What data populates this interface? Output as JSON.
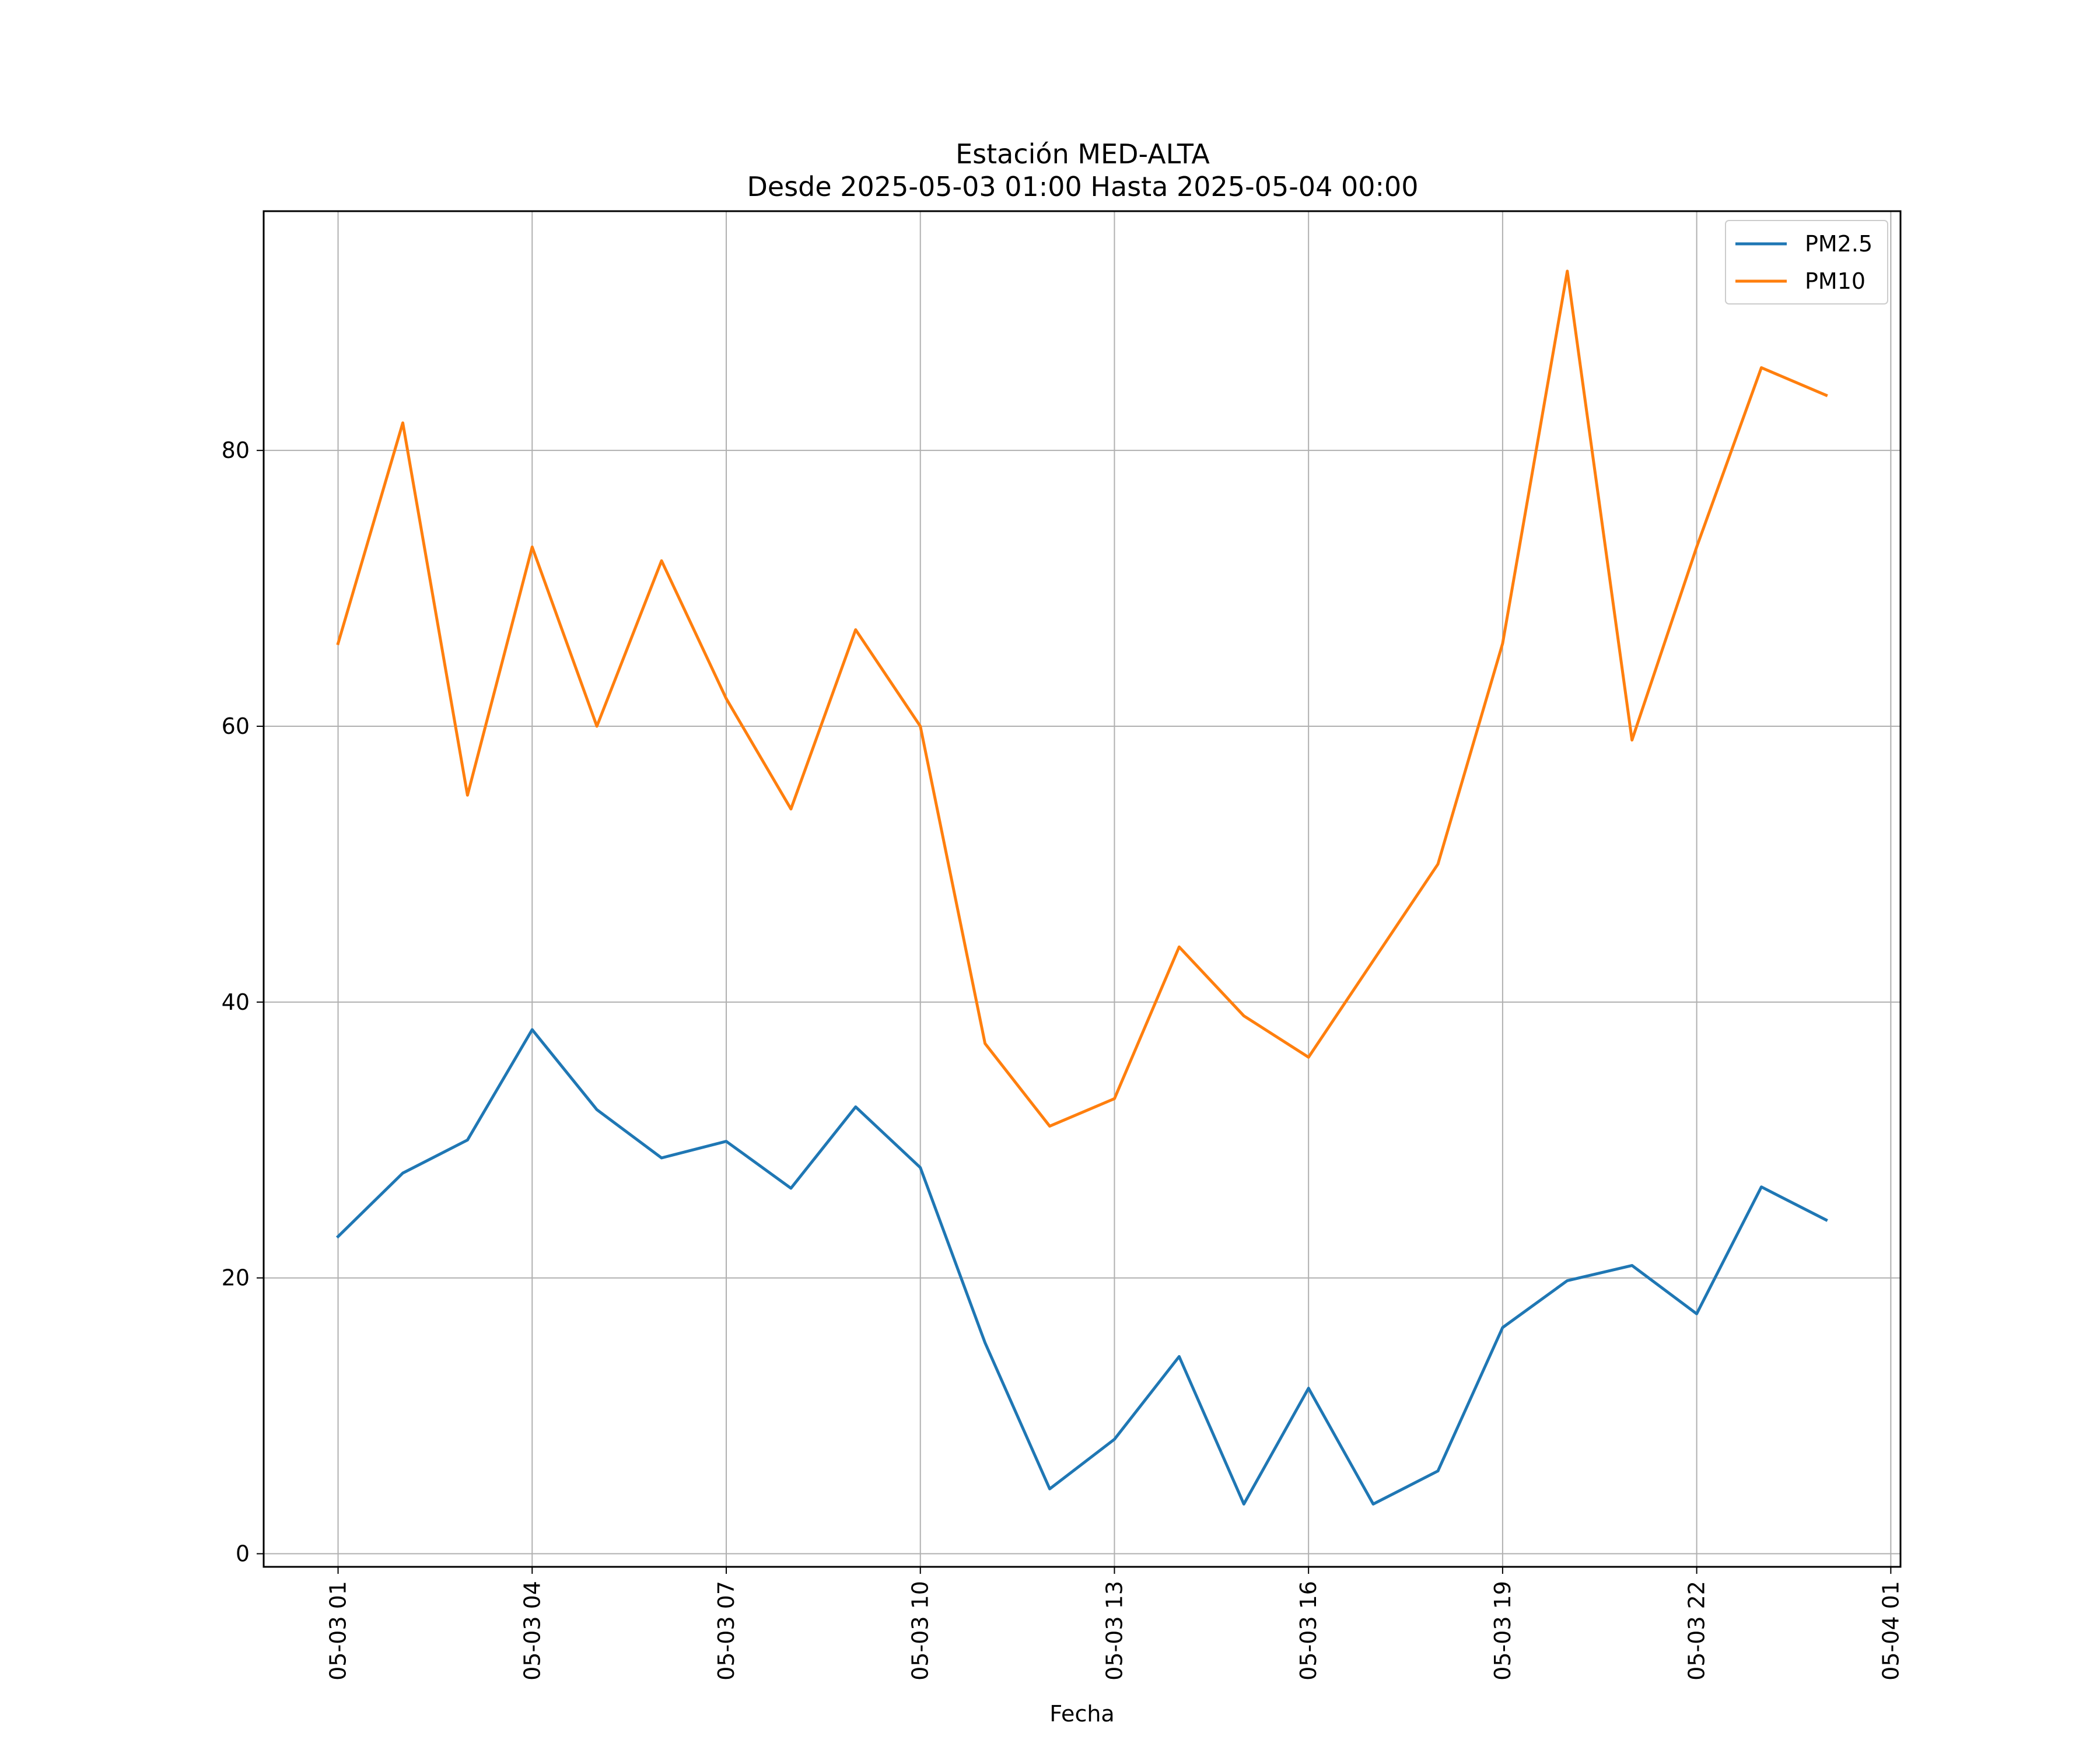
{
  "chart_data": {
    "type": "line",
    "title": "Estación MED-ALTA",
    "subtitle": "Desde 2025-05-03 01:00 Hasta 2025-05-04 00:00",
    "xlabel": "Fecha",
    "ylabel": "",
    "x": [
      "2025-05-03 01:00",
      "2025-05-03 02:00",
      "2025-05-03 03:00",
      "2025-05-03 04:00",
      "2025-05-03 05:00",
      "2025-05-03 06:00",
      "2025-05-03 07:00",
      "2025-05-03 08:00",
      "2025-05-03 09:00",
      "2025-05-03 10:00",
      "2025-05-03 11:00",
      "2025-05-03 12:00",
      "2025-05-03 13:00",
      "2025-05-03 14:00",
      "2025-05-03 15:00",
      "2025-05-03 16:00",
      "2025-05-03 17:00",
      "2025-05-03 18:00",
      "2025-05-03 19:00",
      "2025-05-03 20:00",
      "2025-05-03 21:00",
      "2025-05-03 22:00",
      "2025-05-03 23:00",
      "2025-05-04 00:00"
    ],
    "series": [
      {
        "name": "PM2.5",
        "color": "#1f77b4",
        "values": [
          23,
          27.6,
          30,
          38,
          32.2,
          28.7,
          29.9,
          26.5,
          32.4,
          28,
          15.3,
          4.7,
          8.3,
          14.3,
          3.6,
          12,
          3.6,
          6,
          16.4,
          19.8,
          20.9,
          17.4,
          26.6,
          24.2
        ]
      },
      {
        "name": "PM10",
        "color": "#ff7f0e",
        "values": [
          66,
          82,
          55,
          73,
          60,
          72,
          62,
          54,
          67,
          60,
          37,
          31,
          33,
          44,
          39,
          36,
          43,
          50,
          66,
          93,
          59,
          73,
          86,
          84
        ]
      }
    ],
    "yticks": [
      0,
      20,
      40,
      60,
      80
    ],
    "ytick_labels": [
      "0",
      "20",
      "40",
      "60",
      "80"
    ],
    "xtick_values": [
      "2025-05-03 01:00",
      "2025-05-03 04:00",
      "2025-05-03 07:00",
      "2025-05-03 10:00",
      "2025-05-03 13:00",
      "2025-05-03 16:00",
      "2025-05-03 19:00",
      "2025-05-03 22:00",
      "2025-05-04 01:00"
    ],
    "xtick_labels": [
      "05-03 01",
      "05-03 04",
      "05-03 07",
      "05-03 10",
      "05-03 13",
      "05-03 16",
      "05-03 19",
      "05-03 22",
      "05-04 01"
    ],
    "ylim": [
      -0.95,
      97.35
    ],
    "xlim": [
      "2025-05-02 23:51",
      "2025-05-04 01:09"
    ],
    "grid": true,
    "legend_position": "top-right"
  }
}
